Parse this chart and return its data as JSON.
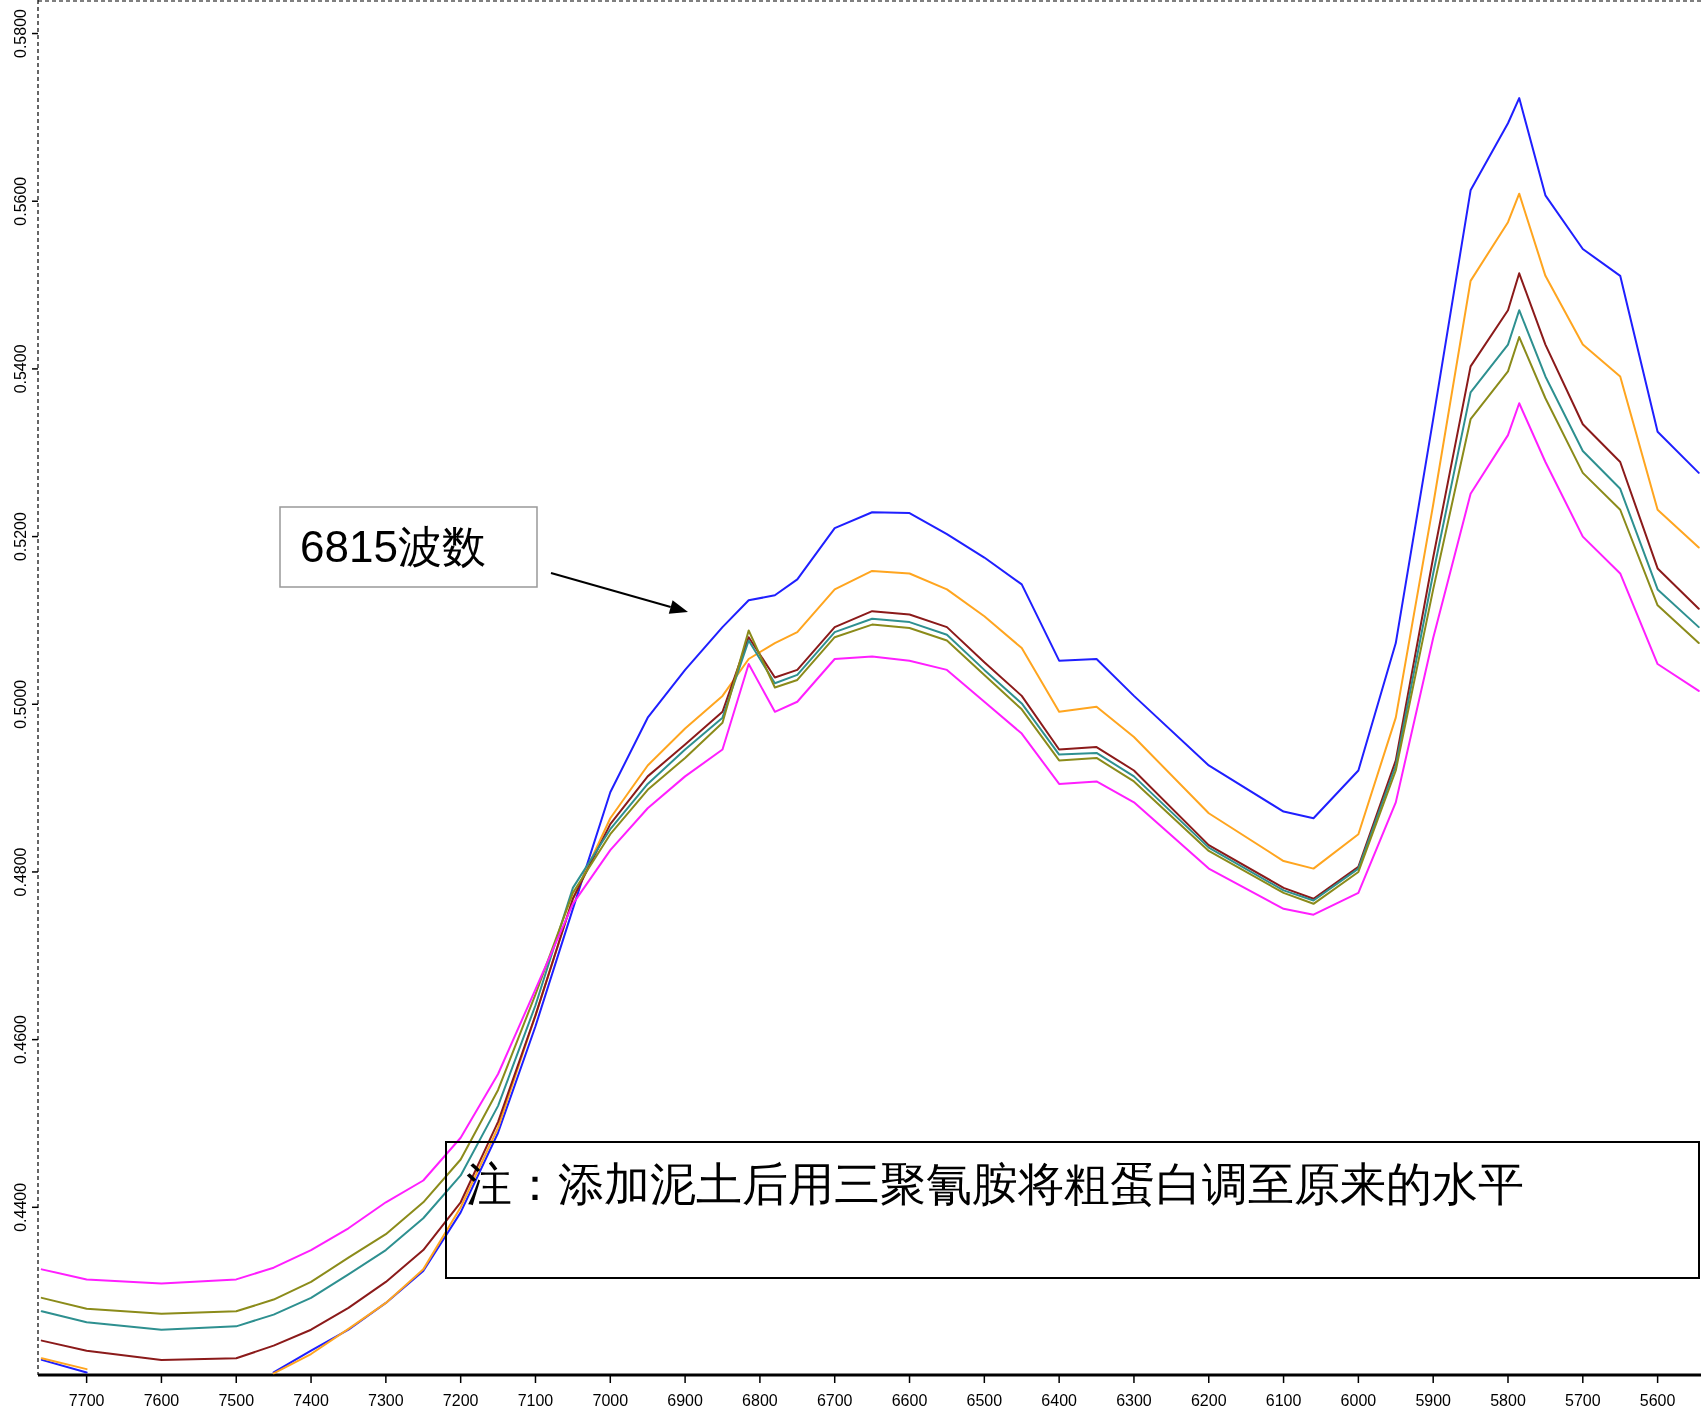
{
  "chart_data": {
    "type": "line",
    "x": [
      7760,
      7700,
      7600,
      7500,
      7450,
      7400,
      7350,
      7300,
      7250,
      7200,
      7150,
      7100,
      7050,
      7000,
      6950,
      6900,
      6850,
      6815,
      6780,
      6750,
      6700,
      6650,
      6600,
      6550,
      6500,
      6450,
      6400,
      6350,
      6300,
      6200,
      6100,
      6060,
      6000,
      5950,
      5900,
      5850,
      5800,
      5785,
      5750,
      5700,
      5650,
      5600,
      5545
    ],
    "series": [
      {
        "color": "#1f1fff",
        "values": [
          0.4218,
          0.4203,
          null,
          null,
          0.4203,
          0.4229,
          0.4254,
          0.4286,
          0.4324,
          0.4394,
          0.4489,
          0.4616,
          0.4756,
          0.4895,
          0.4984,
          0.5041,
          0.5092,
          0.5124,
          0.513,
          0.5149,
          0.521,
          0.5229,
          0.5228,
          0.5203,
          0.5175,
          0.5143,
          0.5052,
          0.5054,
          0.501,
          0.4927,
          0.4872,
          0.4864,
          0.4921,
          0.5073,
          0.534,
          0.5613,
          0.5693,
          0.5723,
          0.5607,
          0.5543,
          0.5511,
          0.5325,
          0.5276
        ]
      },
      {
        "color": "#ffa51f",
        "values": [
          0.422,
          0.4207,
          null,
          null,
          0.4202,
          0.4225,
          0.4255,
          0.4286,
          0.4326,
          0.44,
          0.4495,
          0.4629,
          0.4768,
          0.4864,
          0.4927,
          0.4971,
          0.501,
          0.5054,
          0.5073,
          0.5086,
          0.5137,
          0.5159,
          0.5156,
          0.5137,
          0.5105,
          0.5067,
          0.4991,
          0.4997,
          0.4961,
          0.487,
          0.4813,
          0.4804,
          0.4845,
          0.4984,
          0.5238,
          0.5505,
          0.5575,
          0.5609,
          0.5511,
          0.5429,
          0.5391,
          0.5232,
          0.5187
        ]
      },
      {
        "color": "#8b1a1a",
        "values": [
          0.4241,
          0.4229,
          0.4218,
          0.422,
          0.4235,
          0.4254,
          0.428,
          0.4311,
          0.4349,
          0.4406,
          0.4502,
          0.4629,
          0.4768,
          0.4857,
          0.4914,
          0.4952,
          0.4991,
          0.508,
          0.5032,
          0.5041,
          0.5092,
          0.5111,
          0.5107,
          0.5092,
          0.505,
          0.501,
          0.4946,
          0.4949,
          0.4921,
          0.4832,
          0.4781,
          0.4768,
          0.4806,
          0.4933,
          0.5175,
          0.5403,
          0.547,
          0.5514,
          0.5429,
          0.5334,
          0.5289,
          0.5162,
          0.5114
        ]
      },
      {
        "color": "#2e9090",
        "values": [
          0.4276,
          0.4263,
          0.4254,
          0.4258,
          0.4272,
          0.4292,
          0.432,
          0.4349,
          0.4387,
          0.4438,
          0.4521,
          0.4641,
          0.4781,
          0.4851,
          0.4905,
          0.4946,
          0.4984,
          0.5076,
          0.5025,
          0.5035,
          0.5086,
          0.5102,
          0.5098,
          0.5083,
          0.5041,
          0.5001,
          0.494,
          0.4942,
          0.4914,
          0.4829,
          0.4778,
          0.4766,
          0.4804,
          0.4927,
          0.5156,
          0.5372,
          0.5429,
          0.547,
          0.5391,
          0.5302,
          0.5257,
          0.5137,
          0.5092
        ]
      },
      {
        "color": "#8b8b1a",
        "values": [
          0.4292,
          0.4279,
          0.4273,
          0.4276,
          0.429,
          0.4311,
          0.434,
          0.4368,
          0.4406,
          0.4457,
          0.454,
          0.4654,
          0.4775,
          0.4845,
          0.4898,
          0.4936,
          0.4978,
          0.5088,
          0.502,
          0.5029,
          0.508,
          0.5095,
          0.5091,
          0.5076,
          0.5035,
          0.4994,
          0.4933,
          0.4936,
          0.4908,
          0.4825,
          0.4775,
          0.4762,
          0.48,
          0.4921,
          0.5137,
          0.534,
          0.5397,
          0.5438,
          0.5365,
          0.5276,
          0.5232,
          0.5118,
          0.5073
        ]
      },
      {
        "color": "#ff1fff",
        "values": [
          0.4326,
          0.4314,
          0.4309,
          0.4314,
          0.4328,
          0.4349,
          0.4375,
          0.4406,
          0.4432,
          0.4483,
          0.4559,
          0.466,
          0.4762,
          0.4826,
          0.4876,
          0.4914,
          0.4946,
          0.5048,
          0.4991,
          0.5003,
          0.5054,
          0.5057,
          0.5052,
          0.5041,
          0.5003,
          0.4965,
          0.4905,
          0.4908,
          0.4883,
          0.4804,
          0.4756,
          0.4749,
          0.4775,
          0.4883,
          0.5079,
          0.5251,
          0.5321,
          0.5359,
          0.5289,
          0.52,
          0.5156,
          0.5048,
          0.5016
        ]
      }
    ],
    "xlim": [
      7765,
      5542
    ],
    "ylim": [
      0.42,
      0.584
    ],
    "xticks": [
      7700,
      7600,
      7500,
      7400,
      7300,
      7200,
      7100,
      7000,
      6900,
      6800,
      6700,
      6600,
      6500,
      6400,
      6300,
      6200,
      6100,
      6000,
      5900,
      5800,
      5700,
      5600
    ],
    "yticks": [
      {
        "value": 0.44,
        "label": "0.4400"
      },
      {
        "value": 0.46,
        "label": "0.4600"
      },
      {
        "value": 0.48,
        "label": "0.4800"
      },
      {
        "value": 0.5,
        "label": "0.5000"
      },
      {
        "value": 0.52,
        "label": "0.5200"
      },
      {
        "value": 0.54,
        "label": "0.5400"
      },
      {
        "value": 0.56,
        "label": "0.5600"
      },
      {
        "value": 0.58,
        "label": "0.5800"
      }
    ],
    "annotations": [
      "6815波数",
      "注：添加泥土后用三聚氰胺将粗蛋白调至原来的水平"
    ]
  }
}
